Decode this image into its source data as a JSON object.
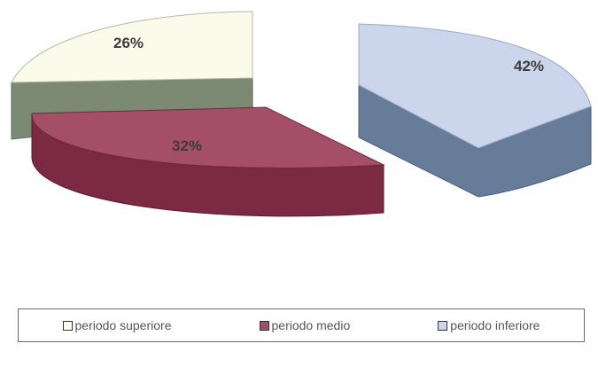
{
  "chart_data": {
    "type": "pie",
    "series": [
      {
        "name": "periodo superiore",
        "value": 26,
        "label": "26%",
        "top": "#fbfbec",
        "side": "#7c8a73"
      },
      {
        "name": "periodo medio",
        "value": 32,
        "label": "32%",
        "top": "#a44e68",
        "side": "#7c2a43"
      },
      {
        "name": "periodo inferiore",
        "value": 42,
        "label": "42%",
        "top": "#cbd6ec",
        "side": "#667c98"
      }
    ],
    "legend_position": "bottom",
    "exploded": true,
    "3d": true
  },
  "legend": {
    "items": [
      {
        "label": "periodo superiore",
        "color": "#fbfbec"
      },
      {
        "label": "periodo medio",
        "color": "#a44e68"
      },
      {
        "label": "periodo inferiore",
        "color": "#cbd6ec"
      }
    ]
  }
}
